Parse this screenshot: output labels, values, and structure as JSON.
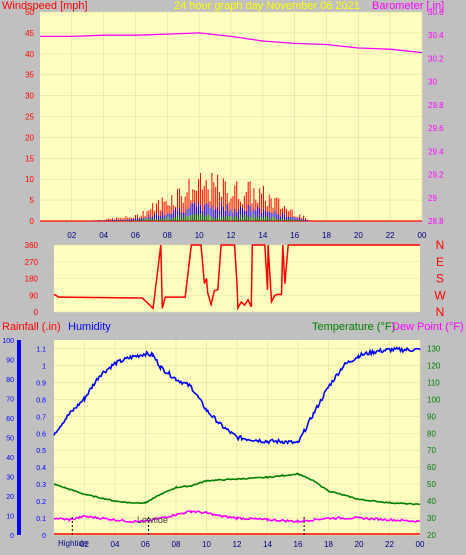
{
  "colors": {
    "background": "#c0c0c0",
    "plot_bg": "#ffffc0",
    "wind": "#ff0000",
    "gust_blue": "#0000ff",
    "calm_green": "#008000",
    "barometer": "#ff00ff",
    "title": "#ffff00",
    "humidity": "#0000ff",
    "temperature": "#008000",
    "dewpoint": "#ff00ff",
    "rain": "#ff0000",
    "tide": "#000000"
  },
  "labels": {
    "windspeed": "Windspeed [mph]",
    "title": "24 hour graph day   November 06 2021",
    "barometer": "Barometer [.in]",
    "rainfall": "Rainfall (.in)",
    "humidity": "Humidity",
    "temperature": "Temperature (°F)",
    "dewpoint": "Dew Point (°F)",
    "hightide": "Hightide",
    "lowtide": "Lowtide"
  },
  "chart_data": [
    {
      "type": "line",
      "name": "wind-barometer",
      "x_ticks": [
        "02",
        "04",
        "06",
        "08",
        "10",
        "12",
        "14",
        "16",
        "18",
        "20",
        "22",
        "00"
      ],
      "y_left": {
        "label": "Windspeed [mph]",
        "range": [
          0,
          50
        ],
        "ticks": [
          0,
          5,
          10,
          15,
          20,
          25,
          30,
          35,
          40,
          45,
          50
        ]
      },
      "y_right": {
        "label": "Barometer [.in]",
        "range": [
          28.8,
          30.6
        ],
        "ticks": [
          28.8,
          29,
          29.2,
          29.4,
          29.6,
          29.8,
          30,
          30.2,
          30.4,
          30.6
        ]
      },
      "series": [
        {
          "name": "Windspeed [mph]",
          "axis": "left",
          "x": [
            1,
            3,
            6,
            7,
            8,
            9,
            10,
            11,
            12,
            13,
            14,
            15,
            16,
            17
          ],
          "y": [
            0,
            0,
            1,
            3,
            5,
            7,
            8,
            8,
            7,
            7,
            6,
            4,
            2,
            0
          ]
        },
        {
          "name": "Barometer [.in]",
          "axis": "right",
          "x": [
            0,
            2,
            4,
            6,
            8,
            10,
            12,
            14,
            16,
            18,
            20,
            22,
            24
          ],
          "y": [
            30.39,
            30.39,
            30.4,
            30.4,
            30.41,
            30.42,
            30.39,
            30.35,
            30.33,
            30.32,
            30.29,
            30.28,
            30.25
          ]
        }
      ]
    },
    {
      "type": "line",
      "name": "wind-direction",
      "y_left": {
        "range": [
          0,
          360
        ],
        "ticks": [
          0,
          90,
          180,
          270,
          360
        ]
      },
      "y_right": {
        "ticks": [
          "N",
          "W",
          "S",
          "E",
          "N"
        ]
      },
      "series": [
        {
          "name": "direction",
          "x": [
            0,
            0.3,
            0.5,
            5.8,
            6.5,
            7.0,
            7.1,
            7.3,
            7.5,
            8.6,
            9.0,
            10,
            11,
            12,
            13,
            14,
            15,
            16,
            24
          ],
          "y": [
            95,
            80,
            80,
            75,
            20,
            360,
            20,
            80,
            80,
            80,
            360,
            180,
            360,
            150,
            360,
            120,
            360,
            360,
            360
          ]
        }
      ]
    },
    {
      "type": "line",
      "name": "temperature-humidity",
      "x_ticks": [
        "02",
        "04",
        "06",
        "08",
        "10",
        "12",
        "14",
        "16",
        "18",
        "20",
        "22",
        "00"
      ],
      "y_left_outer": {
        "label": "Humidity",
        "range": [
          0,
          100
        ],
        "ticks": [
          0,
          10,
          20,
          30,
          40,
          50,
          60,
          70,
          80,
          90,
          100
        ]
      },
      "y_left_inner": {
        "label": "Rainfall (.in)",
        "range": [
          0,
          1.15
        ],
        "ticks": [
          0,
          0.1,
          0.2,
          0.3,
          0.4,
          0.5,
          0.6,
          0.7,
          0.8,
          0.9,
          1,
          1.1
        ]
      },
      "y_right": {
        "label": "Temperature (°F)",
        "range": [
          20,
          135
        ],
        "ticks": [
          20,
          30,
          40,
          50,
          60,
          70,
          80,
          90,
          100,
          110,
          120,
          130
        ]
      },
      "series": [
        {
          "name": "Humidity",
          "axis": "left_outer",
          "x": [
            0,
            1,
            2,
            3,
            4,
            5,
            6,
            6.5,
            7,
            8,
            9,
            10,
            11,
            12,
            13,
            14,
            15,
            16,
            17,
            18,
            19,
            20,
            21,
            22,
            23,
            24
          ],
          "y": [
            52,
            62,
            70,
            82,
            88,
            91,
            93,
            92,
            86,
            80,
            76,
            64,
            56,
            50,
            49,
            48,
            48,
            47,
            62,
            76,
            87,
            92,
            94,
            95,
            95,
            95
          ]
        },
        {
          "name": "Temperature (°F)",
          "axis": "right",
          "x": [
            0,
            1,
            2,
            3,
            4,
            5,
            6,
            7,
            8,
            9,
            10,
            12,
            14,
            15,
            16,
            17,
            18,
            20,
            22,
            24
          ],
          "y": [
            50,
            47,
            44,
            42,
            40,
            39,
            39,
            44,
            48,
            49,
            52,
            53,
            54,
            55,
            56,
            52,
            46,
            41,
            39,
            38
          ]
        },
        {
          "name": "Dew Point (°F)",
          "axis": "right",
          "x": [
            0,
            1,
            2,
            3,
            4,
            5,
            6,
            7,
            8,
            9,
            10,
            11,
            12,
            14,
            16,
            18,
            20,
            22,
            24
          ],
          "y": [
            30,
            29,
            31,
            30,
            29,
            28,
            28,
            30,
            32,
            34,
            33,
            31,
            30,
            29,
            28,
            30,
            30,
            29,
            28
          ]
        },
        {
          "name": "Rainfall (.in)",
          "axis": "left_inner",
          "x": [
            0,
            24
          ],
          "y": [
            0,
            0
          ]
        }
      ],
      "annotations": [
        {
          "text": "Hightide",
          "x": 1.2
        },
        {
          "text": "Lowtide",
          "x": 6.2
        },
        {
          "text": "",
          "x": 16.4
        }
      ]
    }
  ]
}
